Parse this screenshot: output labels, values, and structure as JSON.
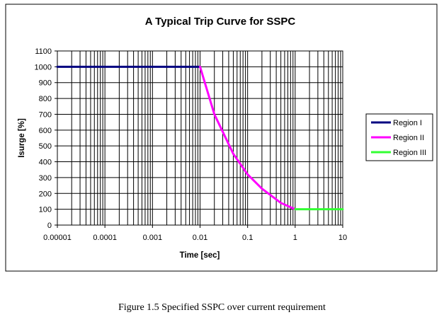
{
  "caption": "Figure 1.5 Specified SSPC over current requirement",
  "chart_data": {
    "type": "line",
    "title": "A Typical Trip Curve for SSPC",
    "xlabel": "Time [sec]",
    "ylabel": "Isurge [%]",
    "x_scale": "log",
    "xlim": [
      1e-05,
      10
    ],
    "ylim": [
      0,
      1100
    ],
    "x_ticks": [
      1e-05,
      0.0001,
      0.001,
      0.01,
      0.1,
      1,
      10
    ],
    "x_tick_labels": [
      "0.00001",
      "0.0001",
      "0.001",
      "0.01",
      "0.1",
      "1",
      "10"
    ],
    "y_ticks": [
      0,
      100,
      200,
      300,
      400,
      500,
      600,
      700,
      800,
      900,
      1000,
      1100
    ],
    "y_tick_labels": [
      "0",
      "100",
      "200",
      "300",
      "400",
      "500",
      "600",
      "700",
      "800",
      "900",
      "1000",
      "1100"
    ],
    "grid": true,
    "legend_position": "right",
    "series": [
      {
        "name": "Region I",
        "color": "#000080",
        "points": [
          [
            1e-05,
            1000
          ],
          [
            0.01,
            1000
          ]
        ]
      },
      {
        "name": "Region II",
        "color": "#ff00ff",
        "points": [
          [
            0.01,
            1000
          ],
          [
            0.02,
            700
          ],
          [
            0.05,
            450
          ],
          [
            0.1,
            320
          ],
          [
            0.2,
            230
          ],
          [
            0.5,
            140
          ],
          [
            1,
            100
          ]
        ]
      },
      {
        "name": "Region III",
        "color": "#33ff33",
        "points": [
          [
            1,
            100
          ],
          [
            10,
            100
          ]
        ]
      }
    ]
  }
}
